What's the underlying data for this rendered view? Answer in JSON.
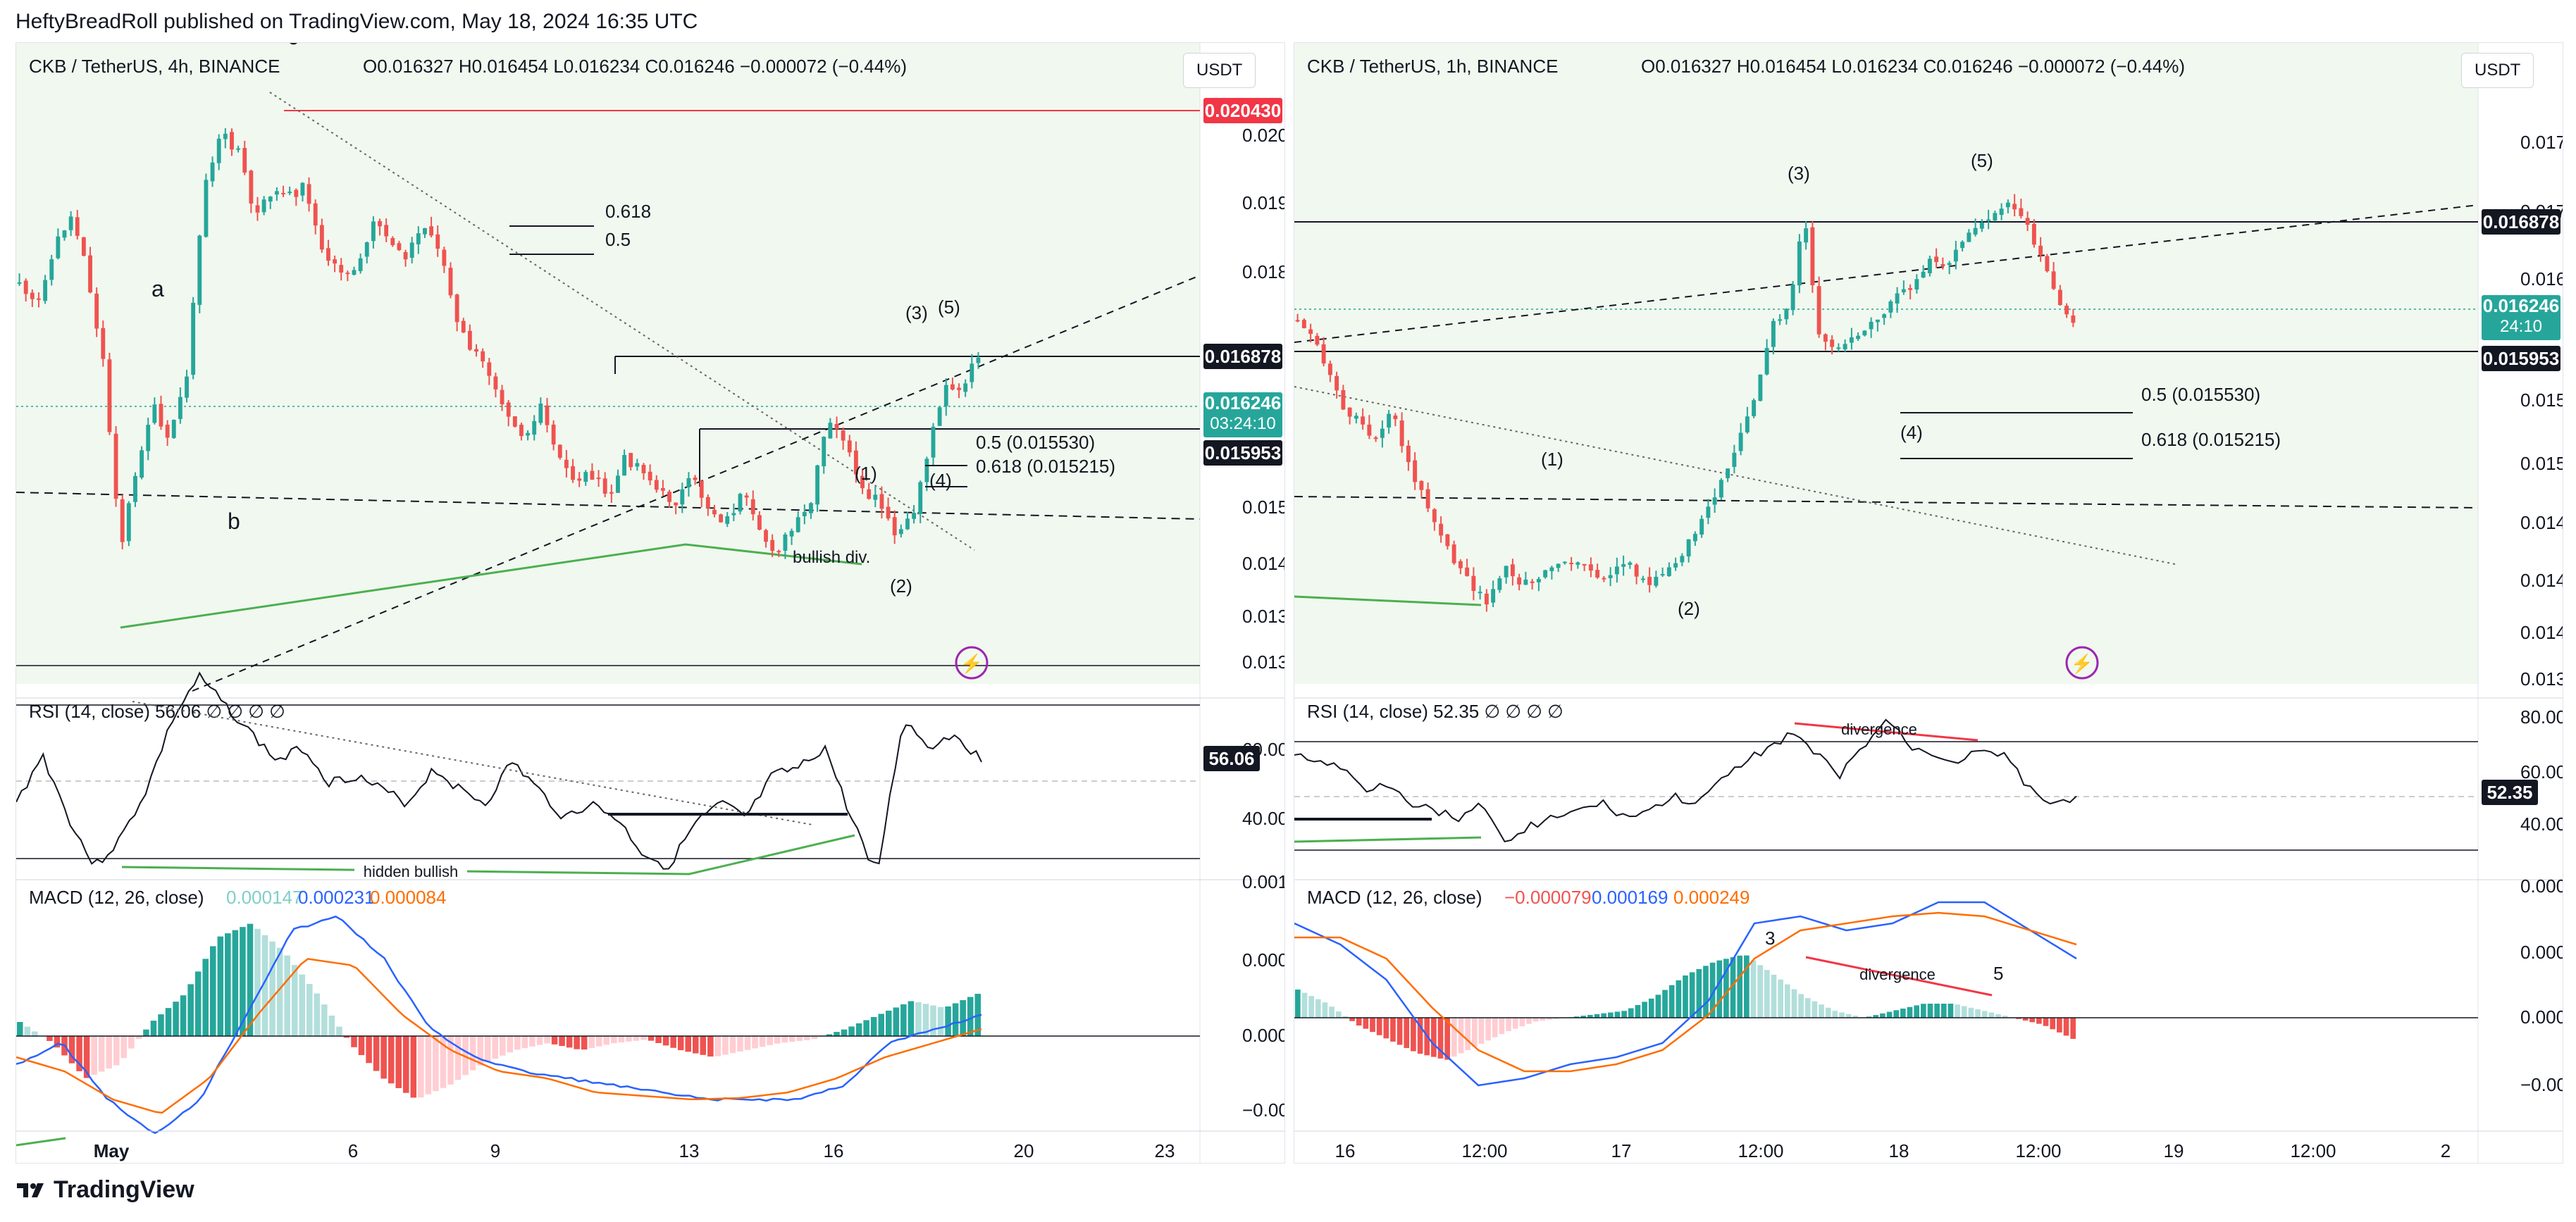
{
  "header": {
    "publisher_line": "HeftyBreadRoll published on TradingView.com, May 18, 2024 16:35 UTC"
  },
  "footer": {
    "brand": "TradingView"
  },
  "charts": [
    {
      "symbol_line": "CKB / TetherUS, 4h, BINANCE",
      "ohlc": {
        "O": "O0.016327",
        "H": "H0.016454",
        "L": "L0.016234",
        "C": "C0.016246",
        "chg": "−0.000072 (−0.44%)"
      },
      "currency_button": "USDT",
      "price_axis": [
        "0.020000",
        "0.019000",
        "0.018000",
        "0.015000",
        "0.014400",
        "0.013800",
        "0.013300"
      ],
      "price_badges": {
        "top": "0.020430",
        "level1": "0.016878",
        "last": "0.016246",
        "countdown": "03:24:10",
        "level2": "0.015953"
      },
      "annotations": {
        "a": "a",
        "b": "b",
        "c": "c",
        "w1": "(1)",
        "w2": "(2)",
        "w3": "(3)",
        "w4": "(4)",
        "w5": "(5)",
        "fib618_top": "0.618",
        "fib05_top": "0.5",
        "fib05_low": "0.5 (0.015530)",
        "fib618_low": "0.618 (0.015215)",
        "bullish_div": "bullish div."
      },
      "rsi": {
        "title": "RSI (14, close)",
        "value": "56.06",
        "phi": "∅  ∅  ∅  ∅",
        "axis": [
          "60.00",
          "40.00"
        ],
        "badge": "56.06",
        "label": "hidden bullish"
      },
      "macd": {
        "title": "MACD (12, 26, close)",
        "hist": "0.000147",
        "macd": "0.000231",
        "signal": "0.000084",
        "axis": [
          "0.001000",
          "0.000500",
          "0.000000",
          "−0.000500"
        ]
      },
      "time_axis": [
        "May",
        "6",
        "9",
        "13",
        "16",
        "20",
        "23"
      ]
    },
    {
      "symbol_line": "CKB / TetherUS, 1h, BINANCE",
      "ohlc": {
        "O": "O0.016327",
        "H": "H0.016454",
        "L": "L0.016234",
        "C": "C0.016246",
        "chg": "−0.000072 (−0.44%)"
      },
      "currency_button": "USDT",
      "price_axis": [
        "0.017500",
        "0.017000",
        "0.016500",
        "0.015600",
        "0.015200",
        "0.014800",
        "0.014400",
        "0.014100",
        "0.013800"
      ],
      "price_badges": {
        "level1": "0.016878",
        "last": "0.016246",
        "countdown": "24:10",
        "level2": "0.015953"
      },
      "annotations": {
        "w1": "(1)",
        "w2": "(2)",
        "w3": "(3)",
        "w4": "(4)",
        "w5": "(5)",
        "fib05": "0.5 (0.015530)",
        "fib618": "0.618 (0.015215)"
      },
      "rsi": {
        "title": "RSI (14, close)",
        "value": "52.35",
        "phi": "∅  ∅  ∅  ∅",
        "axis": [
          "80.00",
          "60.00",
          "40.00"
        ],
        "badge": "52.35",
        "label": "divergence"
      },
      "macd": {
        "title": "MACD (12, 26, close)",
        "hist": "−0.000079",
        "macd": "0.000169",
        "signal": "0.000249",
        "axis": [
          "0.000400",
          "0.000200",
          "0.000000",
          "−0.000200"
        ],
        "label": "divergence",
        "n3": "3",
        "n5": "5"
      },
      "time_axis": [
        "16",
        "12:00",
        "17",
        "12:00",
        "18",
        "12:00",
        "19",
        "12:00",
        "2"
      ]
    }
  ],
  "colors": {
    "up": "#26a69a",
    "down": "#ef5350",
    "green_line": "#4caf50",
    "red_badge": "#f23645",
    "macd_line": "#2962ff",
    "signal_line": "#ff6d00",
    "purple": "#9c27b0"
  }
}
